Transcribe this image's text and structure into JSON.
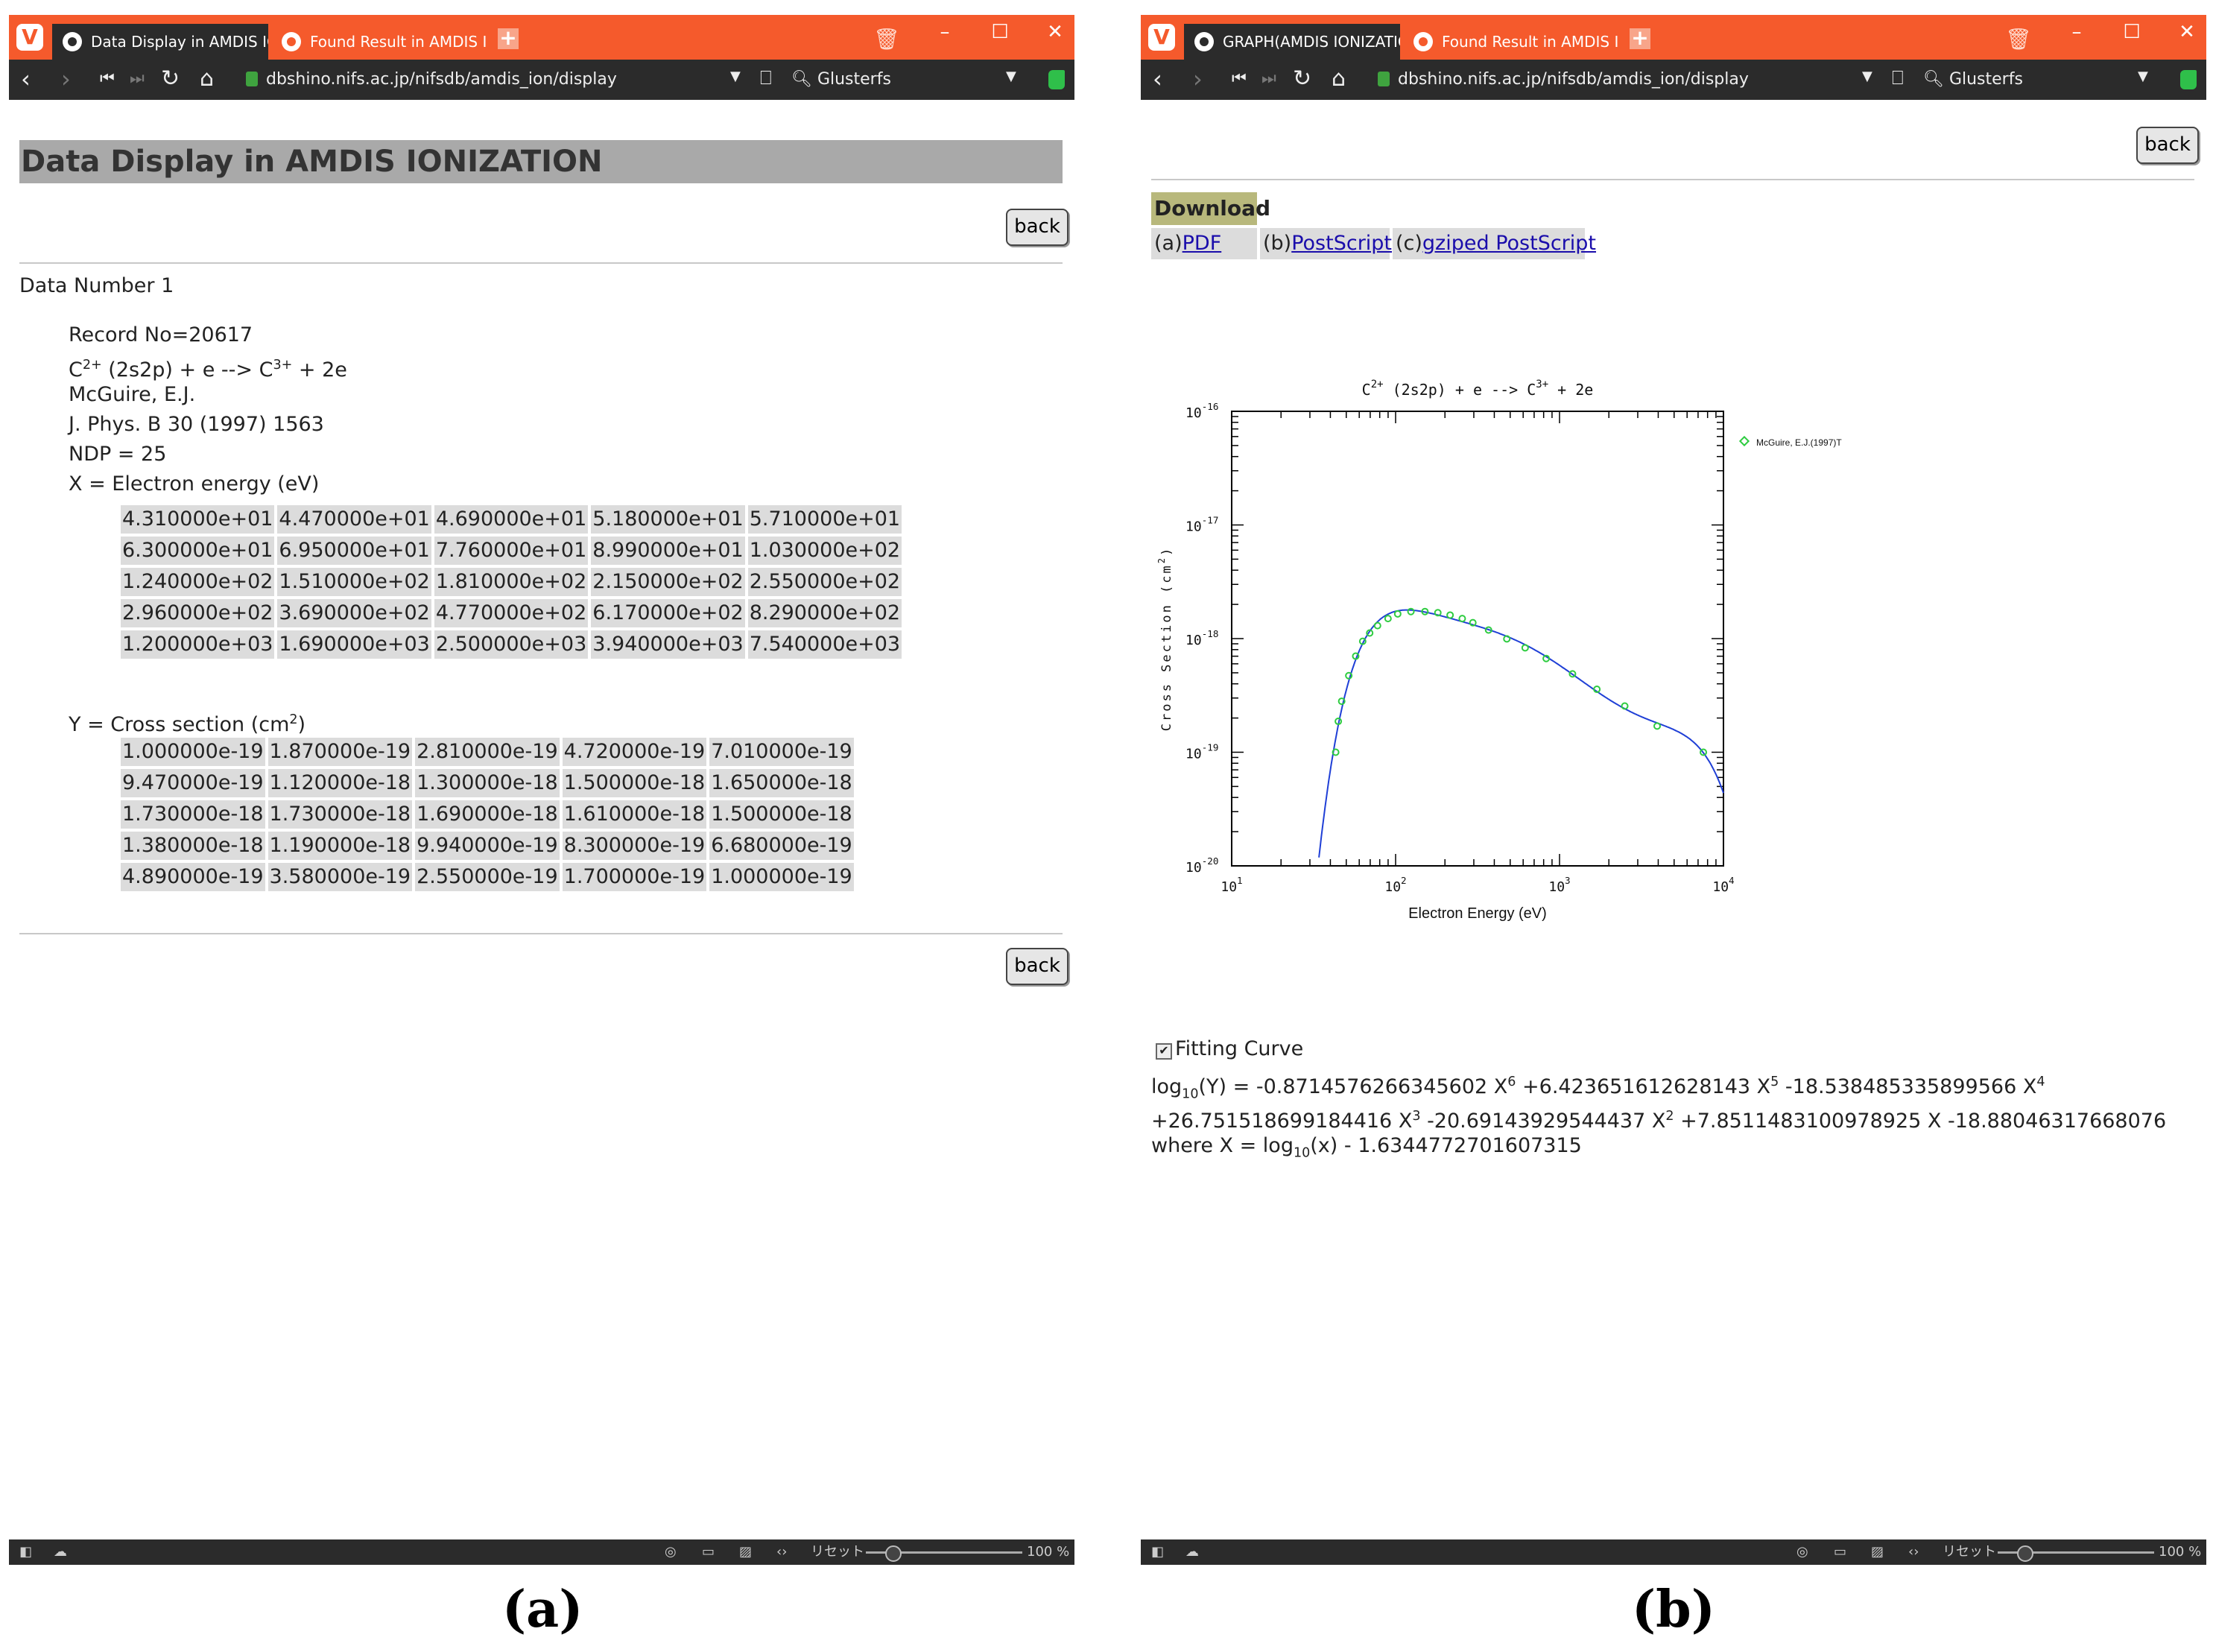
{
  "browser": {
    "zoom": "100 %",
    "reset_label": "リセット",
    "search_engine": "Glusterfs",
    "url": "dbshino.nifs.ac.jp/nifsdb/amdis_ion/display"
  },
  "panel_a": {
    "caption": "(a)",
    "tabs": [
      "Data Display in AMDIS IONI",
      "Found Result in AMDIS ION"
    ],
    "page_title": "Data Display in AMDIS IONIZATION",
    "back_label": "back",
    "data_number": "Data Number 1",
    "record_no": "Record No=20617",
    "reaction": {
      "p1": "C",
      "s1": "2+",
      "p2": " (2s2p) + e --> C",
      "s2": "3+",
      "p3": " + 2e"
    },
    "author": "McGuire, E.J.",
    "journal": "J. Phys. B 30 (1997) 1563",
    "ndp": "NDP = 25",
    "x_label": "X = Electron energy (eV)",
    "y_label_pre": "Y = Cross section (cm",
    "y_label_sup": "2",
    "y_label_post": ")",
    "x_values": [
      [
        "4.310000e+01",
        "4.470000e+01",
        "4.690000e+01",
        "5.180000e+01",
        "5.710000e+01"
      ],
      [
        "6.300000e+01",
        "6.950000e+01",
        "7.760000e+01",
        "8.990000e+01",
        "1.030000e+02"
      ],
      [
        "1.240000e+02",
        "1.510000e+02",
        "1.810000e+02",
        "2.150000e+02",
        "2.550000e+02"
      ],
      [
        "2.960000e+02",
        "3.690000e+02",
        "4.770000e+02",
        "6.170000e+02",
        "8.290000e+02"
      ],
      [
        "1.200000e+03",
        "1.690000e+03",
        "2.500000e+03",
        "3.940000e+03",
        "7.540000e+03"
      ]
    ],
    "y_values": [
      [
        "1.000000e-19",
        "1.870000e-19",
        "2.810000e-19",
        "4.720000e-19",
        "7.010000e-19"
      ],
      [
        "9.470000e-19",
        "1.120000e-18",
        "1.300000e-18",
        "1.500000e-18",
        "1.650000e-18"
      ],
      [
        "1.730000e-18",
        "1.730000e-18",
        "1.690000e-18",
        "1.610000e-18",
        "1.500000e-18"
      ],
      [
        "1.380000e-18",
        "1.190000e-18",
        "9.940000e-19",
        "8.300000e-19",
        "6.680000e-19"
      ],
      [
        "4.890000e-19",
        "3.580000e-19",
        "2.550000e-19",
        "1.700000e-19",
        "1.000000e-19"
      ]
    ]
  },
  "panel_b": {
    "caption": "(b)",
    "tabs": [
      "GRAPH(AMDIS IONIZATION",
      "Found Result in AMDIS ION"
    ],
    "back_label": "back",
    "download_header": "Download",
    "download": [
      {
        "prefix": "(a)",
        "link": "PDF"
      },
      {
        "prefix": "(b)",
        "link": "PostScript"
      },
      {
        "prefix": "(c)",
        "link": "gziped PostScript"
      }
    ],
    "fitting_label": "Fitting Curve",
    "fitting_checked": true,
    "eq_log": "log",
    "eq_sub10": "10",
    "eq_line1_a": "(Y) = -0.8714576266345602 X",
    "eq_e6": "6",
    "eq_line1_b": " +6.423651612628143 X",
    "eq_e5": "5",
    "eq_line1_c": " -18.538485335899566 X",
    "eq_e4": "4",
    "eq_line2_a": "+26.751518699184416 X",
    "eq_e3": "3",
    "eq_line2_b": " -20.69143929544437 X",
    "eq_e2": "2",
    "eq_line2_c": " +7.8511483100978925 X -18.88046317668076",
    "eq_line3_a": "where X = log",
    "eq_line3_b": "(x) - 1.6344772701607315"
  },
  "chart_data": {
    "type": "scatter",
    "title_parts": {
      "a": "C",
      "sa": "2+",
      "b": " (2s2p) + e --> C",
      "sb": "3+",
      "c": " + 2e"
    },
    "xlabel": "Electron Energy (eV)",
    "ylabel": "Cross Section (cm",
    "ylabel_sup": "2",
    "ylabel_close": ")",
    "x_scale": "log",
    "y_scale": "log",
    "xlim": [
      10,
      10000
    ],
    "ylim": [
      1e-20,
      1e-16
    ],
    "x_tick_labels": [
      {
        "base": "10",
        "exp": "1"
      },
      {
        "base": "10",
        "exp": "2"
      },
      {
        "base": "10",
        "exp": "3"
      },
      {
        "base": "10",
        "exp": "4"
      }
    ],
    "y_tick_labels": [
      {
        "base": "10",
        "exp": "-20"
      },
      {
        "base": "10",
        "exp": "-19"
      },
      {
        "base": "10",
        "exp": "-18"
      },
      {
        "base": "10",
        "exp": "-17"
      },
      {
        "base": "10",
        "exp": "-16"
      }
    ],
    "legend": "McGuire, E.J.(1997)T",
    "legend_position": "top-right, outside",
    "marker_color": "#2ecc40",
    "curve_color": "#1f3fd6",
    "points": {
      "x": [
        43.1,
        44.7,
        46.9,
        51.8,
        57.1,
        63,
        69.5,
        77.6,
        89.9,
        103,
        124,
        151,
        181,
        215,
        255,
        296,
        369,
        477,
        617,
        829,
        1200,
        1690,
        2500,
        3940,
        7540
      ],
      "y": [
        1e-19,
        1.87e-19,
        2.81e-19,
        4.72e-19,
        7.01e-19,
        9.47e-19,
        1.12e-18,
        1.3e-18,
        1.5e-18,
        1.65e-18,
        1.73e-18,
        1.73e-18,
        1.69e-18,
        1.61e-18,
        1.5e-18,
        1.38e-18,
        1.19e-18,
        9.94e-19,
        8.3e-19,
        6.68e-19,
        4.89e-19,
        3.58e-19,
        2.55e-19,
        1.7e-19,
        1e-19
      ]
    },
    "fit": {
      "coefficients": [
        -0.8714576266345602,
        6.423651612628143,
        -18.538485335899566,
        26.751518699184416,
        -20.69143929544437,
        7.8511483100978925,
        -18.88046317668076
      ],
      "x_offset": 1.6344772701607315
    }
  }
}
